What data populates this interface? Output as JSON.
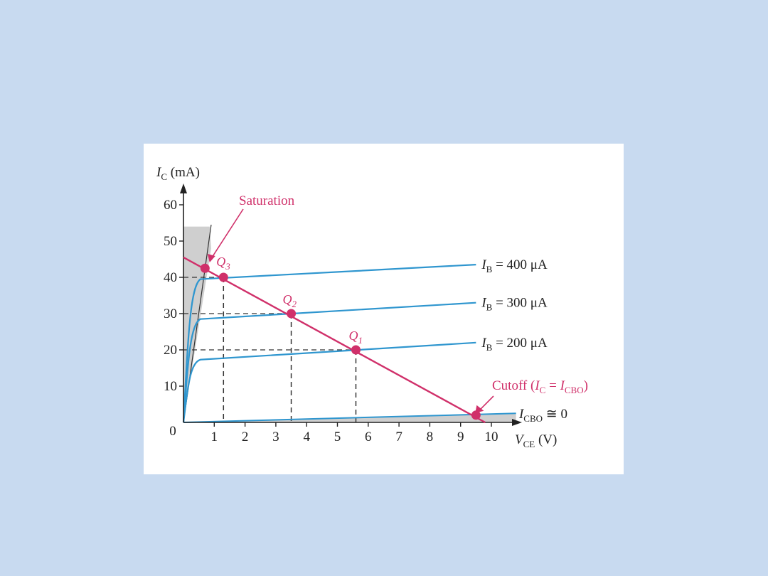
{
  "colors": {
    "background": "#c8daf0",
    "panel": "#ffffff",
    "curve": "#2f96cf",
    "loadline": "#d0306a",
    "axis": "#222222",
    "saturation_shade": "#cfcfcf"
  },
  "chart_data": {
    "type": "line",
    "xlabel": "V_CE (V)",
    "ylabel": "I_C (mA)",
    "xlim": [
      0,
      10
    ],
    "ylim": [
      0,
      60
    ],
    "x_ticks": [
      "1",
      "2",
      "3",
      "4",
      "5",
      "6",
      "7",
      "8",
      "9",
      "10"
    ],
    "y_ticks": [
      "10",
      "20",
      "30",
      "40",
      "50",
      "60"
    ],
    "origin_label": "0",
    "series": [
      {
        "name": "I_B = 400 μA",
        "label_main": "I",
        "label_sub": "B",
        "label_rest": " = 400 μA",
        "knee": 39.5,
        "end": 43.5
      },
      {
        "name": "I_B = 300 μA",
        "label_main": "I",
        "label_sub": "B",
        "label_rest": " = 300 μA",
        "knee": 28.5,
        "end": 33
      },
      {
        "name": "I_B = 200 μA",
        "label_main": "I",
        "label_sub": "B",
        "label_rest": " = 200 μA",
        "knee": 17.3,
        "end": 22
      }
    ],
    "cutoff_curve": {
      "label_main": "I",
      "label_sub": "CBO",
      "label_rest": " ≅ 0"
    },
    "load_line": {
      "x_intercept": 9.8,
      "y_intercept": 45.5
    },
    "q_points": [
      {
        "name": "Q3",
        "label_main": "Q",
        "label_sub": "3",
        "x": 1.3,
        "y": 40
      },
      {
        "name": "Q2",
        "label_main": "Q",
        "label_sub": "2",
        "x": 3.5,
        "y": 30
      },
      {
        "name": "Q1",
        "label_main": "Q",
        "label_sub": "1",
        "x": 5.6,
        "y": 20
      }
    ],
    "saturation_point": {
      "x": 0.7,
      "y": 42.5
    },
    "cutoff_point": {
      "x": 9.5,
      "y": 2
    },
    "annotations": {
      "saturation": "Saturation",
      "cutoff_prefix": "Cutoff (",
      "cutoff_ic": "I",
      "cutoff_ic_sub": "C",
      "cutoff_eq": " = ",
      "cutoff_icbo": "I",
      "cutoff_icbo_sub": "CBO",
      "cutoff_suffix": ")"
    },
    "axis_titles": {
      "y_main": "I",
      "y_sub": "C",
      "y_rest": " (mA)",
      "x_main": "V",
      "x_sub": "CE",
      "x_rest": " (V)"
    }
  }
}
